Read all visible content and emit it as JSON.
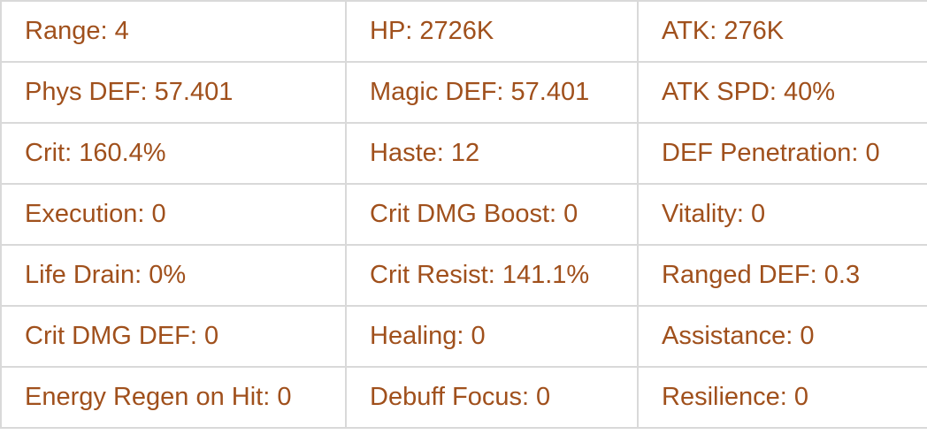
{
  "text_color": "#a0501c",
  "stats": [
    [
      "Range: 4",
      "HP: 2726K",
      "ATK: 276K"
    ],
    [
      "Phys DEF: 57.401",
      "Magic DEF: 57.401",
      "ATK SPD: 40%"
    ],
    [
      "Crit: 160.4%",
      "Haste: 12",
      "DEF Penetration: 0"
    ],
    [
      "Execution: 0",
      "Crit DMG Boost: 0",
      "Vitality: 0"
    ],
    [
      "Life Drain: 0%",
      "Crit Resist: 141.1%",
      "Ranged DEF: 0.3"
    ],
    [
      "Crit DMG DEF: 0",
      "Healing: 0",
      "Assistance: 0"
    ],
    [
      "Energy Regen on Hit: 0",
      "Debuff Focus: 0",
      "Resilience: 0"
    ]
  ]
}
